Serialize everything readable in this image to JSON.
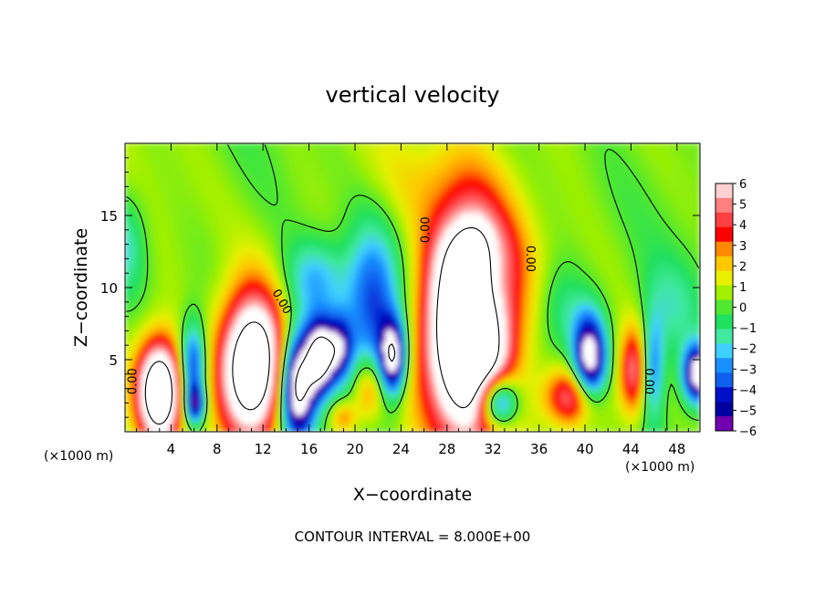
{
  "chart_data": {
    "type": "heatmap",
    "title": "vertical velocity",
    "xlabel": "X−coordinate",
    "ylabel": "Z−coordinate",
    "x_unit_left": "(×1000 m)",
    "x_unit_right": "(×1000 m)",
    "xlim": [
      0,
      50
    ],
    "ylim": [
      0,
      20
    ],
    "x_ticks": [
      4,
      8,
      12,
      16,
      20,
      24,
      28,
      32,
      36,
      40,
      44,
      48
    ],
    "y_ticks": [
      5,
      10,
      15
    ],
    "colorbar": {
      "ticks": [
        "6",
        "5",
        "4",
        "3",
        "2",
        "1",
        "0",
        "−1",
        "−2",
        "−3",
        "−4",
        "−5",
        "−6"
      ],
      "values": [
        6,
        5,
        4,
        3,
        2,
        1,
        0,
        -1,
        -2,
        -3,
        -4,
        -5,
        -6
      ],
      "colors": [
        "#ffd0d0",
        "#ff8080",
        "#ff4040",
        "#ff0000",
        "#ff8800",
        "#ffc800",
        "#e8f000",
        "#a0f000",
        "#50e830",
        "#20e060",
        "#40e8a0",
        "#40d0ff",
        "#1890ff",
        "#1060ee",
        "#0010c8",
        "#0000a0",
        "#7000b0"
      ],
      "saturation_color": "#ffffff"
    },
    "cells": [
      {
        "x": 0.0,
        "z": 13.0,
        "sx": 1.3,
        "sz": 2.5,
        "v": -2.2
      },
      {
        "x": 3.0,
        "z": 2.8,
        "sx": 1.3,
        "sz": 2.4,
        "v": 11
      },
      {
        "x": 5.9,
        "z": 4.5,
        "sx": 0.8,
        "sz": 2.2,
        "v": -5.5
      },
      {
        "x": 6.1,
        "z": 1.9,
        "sx": 0.6,
        "sz": 0.9,
        "v": -5
      },
      {
        "x": 11.1,
        "z": 4.6,
        "sx": 2.0,
        "sz": 3.5,
        "v": 11.5
      },
      {
        "x": 15.0,
        "z": 3.2,
        "sx": 1.1,
        "sz": 2.6,
        "v": -10
      },
      {
        "x": 17.0,
        "z": 5.2,
        "sx": 0.9,
        "sz": 1.8,
        "v": -9
      },
      {
        "x": 18.7,
        "z": 5.8,
        "sx": 0.8,
        "sz": 1.6,
        "v": -5
      },
      {
        "x": 19.0,
        "z": 1.0,
        "sx": 0.8,
        "sz": 0.8,
        "v": 2.5
      },
      {
        "x": 21.5,
        "z": 8.4,
        "sx": 1.7,
        "sz": 3.9,
        "v": -5
      },
      {
        "x": 21.2,
        "z": 2.9,
        "sx": 1.0,
        "sz": 1.6,
        "v": 3.5
      },
      {
        "x": 23.3,
        "z": 5.2,
        "sx": 0.8,
        "sz": 1.8,
        "v": -8
      },
      {
        "x": 16.6,
        "z": 10.6,
        "sx": 2.0,
        "sz": 2.0,
        "v": -3
      },
      {
        "x": 29.9,
        "z": 7.0,
        "sx": 2.6,
        "sz": 5.2,
        "v": 14
      },
      {
        "x": 30.5,
        "z": 12.5,
        "sx": 2.2,
        "sz": 2.0,
        "v": 3
      },
      {
        "x": 32.4,
        "z": 2.1,
        "sx": 1.2,
        "sz": 1.3,
        "v": -8
      },
      {
        "x": 32.1,
        "z": 10.8,
        "sx": 1.0,
        "sz": 2.2,
        "v": -2
      },
      {
        "x": 38.9,
        "z": 2.4,
        "sx": 1.7,
        "sz": 1.4,
        "v": 5
      },
      {
        "x": 40.4,
        "z": 5.0,
        "sx": 1.0,
        "sz": 2.2,
        "v": -8.5
      },
      {
        "x": 38.0,
        "z": 8.3,
        "sx": 1.5,
        "sz": 2.3,
        "v": -2
      },
      {
        "x": 44.2,
        "z": 4.2,
        "sx": 0.9,
        "sz": 2.2,
        "v": 5
      },
      {
        "x": 45.9,
        "z": 4.4,
        "sx": 0.7,
        "sz": 2.5,
        "v": -4
      },
      {
        "x": 49.8,
        "z": 4.0,
        "sx": 0.9,
        "sz": 1.4,
        "v": -8
      },
      {
        "x": 47.5,
        "z": 8.5,
        "sx": 2.0,
        "sz": 2.5,
        "v": -1.6
      },
      {
        "x": 27.0,
        "z": 17.5,
        "sx": 4.0,
        "sz": 2.5,
        "v": 1.3
      }
    ],
    "contour_labels": [
      {
        "x": 0.7,
        "z": 3.5,
        "text": "0.00",
        "rotate": -90
      },
      {
        "x": 13.6,
        "z": 9.0,
        "text": "0.00",
        "rotate": 60
      },
      {
        "x": 26.2,
        "z": 14.0,
        "text": "0.00",
        "rotate": -90
      },
      {
        "x": 35.2,
        "z": 12.0,
        "text": "0.00",
        "rotate": 90
      },
      {
        "x": 45.5,
        "z": 3.5,
        "text": "0.00",
        "rotate": 90
      }
    ]
  },
  "footer": "CONTOUR INTERVAL = 8.000E+00"
}
